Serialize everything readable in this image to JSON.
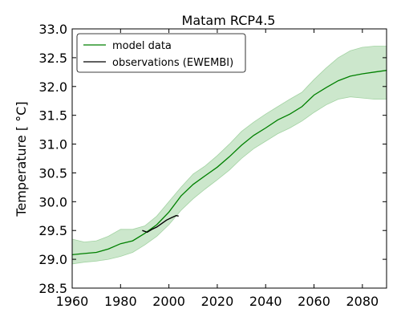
{
  "chart_data": {
    "type": "line",
    "title": "Matam RCP4.5",
    "xlabel": "",
    "ylabel": "Temperature [ °C]",
    "xlim": [
      1960,
      2090
    ],
    "ylim": [
      28.5,
      33.0
    ],
    "x_ticks": [
      1960,
      1980,
      2000,
      2020,
      2040,
      2060,
      2080
    ],
    "x_tick_labels": [
      "1960",
      "1980",
      "2000",
      "2020",
      "2040",
      "2060",
      "2080"
    ],
    "y_ticks": [
      28.5,
      29.0,
      29.5,
      30.0,
      30.5,
      31.0,
      31.5,
      32.0,
      32.5,
      33.0
    ],
    "y_tick_labels": [
      "28.5",
      "29.0",
      "29.5",
      "30.0",
      "30.5",
      "31.0",
      "31.5",
      "32.0",
      "32.5",
      "33.0"
    ],
    "grid": false,
    "legend_position": "top-left",
    "legend": [
      "model data",
      "observations (EWEMBI)"
    ],
    "colors": {
      "model": "#008000",
      "band": "#a3d3a3",
      "observations": "#000000"
    },
    "series": [
      {
        "name": "model data",
        "x": [
          1960,
          1965,
          1970,
          1975,
          1980,
          1985,
          1990,
          1995,
          2000,
          2005,
          2010,
          2015,
          2020,
          2025,
          2030,
          2035,
          2040,
          2045,
          2050,
          2055,
          2060,
          2065,
          2070,
          2075,
          2080,
          2085,
          2090
        ],
        "y": [
          29.08,
          29.1,
          29.12,
          29.18,
          29.27,
          29.32,
          29.45,
          29.6,
          29.82,
          30.1,
          30.3,
          30.45,
          30.6,
          30.78,
          30.98,
          31.15,
          31.28,
          31.42,
          31.52,
          31.65,
          31.85,
          31.98,
          32.1,
          32.18,
          32.22,
          32.25,
          32.28
        ],
        "lower": [
          28.92,
          28.95,
          28.97,
          29.0,
          29.05,
          29.12,
          29.25,
          29.4,
          29.6,
          29.85,
          30.05,
          30.22,
          30.38,
          30.55,
          30.75,
          30.92,
          31.05,
          31.18,
          31.28,
          31.4,
          31.55,
          31.68,
          31.78,
          31.82,
          31.8,
          31.78,
          31.78
        ],
        "upper": [
          29.35,
          29.3,
          29.32,
          29.4,
          29.52,
          29.52,
          29.58,
          29.75,
          30.0,
          30.25,
          30.48,
          30.62,
          30.8,
          31.0,
          31.22,
          31.38,
          31.52,
          31.65,
          31.78,
          31.9,
          32.12,
          32.32,
          32.5,
          32.62,
          32.68,
          32.7,
          32.7
        ]
      },
      {
        "name": "observations (EWEMBI)",
        "x": [
          1989,
          1991,
          1993,
          1995,
          1997,
          1999,
          2001,
          2003,
          2004
        ],
        "y": [
          29.5,
          29.47,
          29.52,
          29.56,
          29.62,
          29.68,
          29.72,
          29.76,
          29.75
        ]
      }
    ]
  }
}
